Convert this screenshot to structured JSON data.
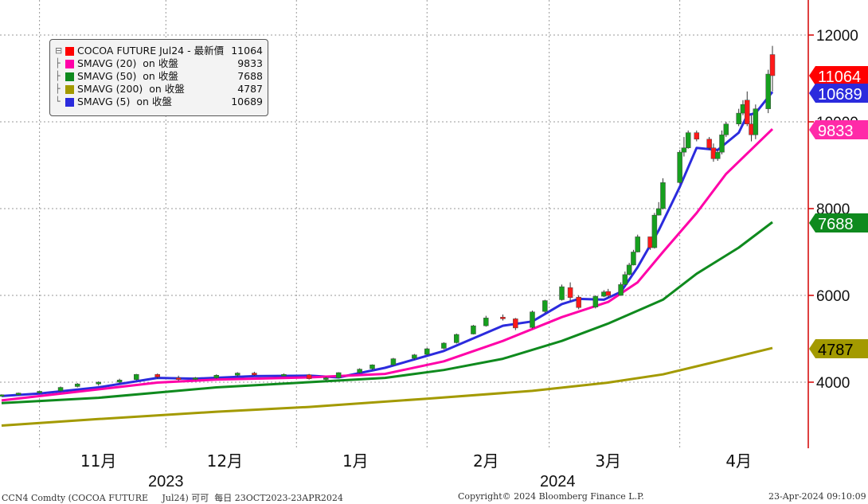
{
  "chart_data": {
    "type": "candlestick",
    "title": "",
    "y_axis": {
      "ticks": [
        4000,
        6000,
        8000,
        10000,
        12000
      ],
      "position": "right",
      "color": "#d40000"
    },
    "x_axis": {
      "month_labels": [
        "11月",
        "12月",
        "1月",
        "2月",
        "3月",
        "4月"
      ],
      "year_labels": [
        "2023",
        "2024"
      ]
    },
    "grid": true,
    "legend": {
      "placement": "top-left",
      "entries": [
        {
          "label": "COCOA FUTURE Jul24 - 最新價",
          "value": "11064",
          "color": "#ff0000"
        },
        {
          "label": "SMAVG (20)  on 收盤",
          "value": "9833",
          "color": "#ff00a8"
        },
        {
          "label": "SMAVG (50)  on 收盤",
          "value": "7688",
          "color": "#0f8a1e"
        },
        {
          "label": "SMAVG (200)  on 收盤",
          "value": "4787",
          "color": "#a39a00"
        },
        {
          "label": "SMAVG (5)  on 收盤",
          "value": "10689",
          "color": "#2b2bdd"
        }
      ]
    },
    "value_tags": [
      {
        "value": "11064",
        "y": 11064,
        "bg": "#ff0000",
        "fg": "#ffffff"
      },
      {
        "value": "10689",
        "y": 10689,
        "bg": "#2b2bdd",
        "fg": "#ffffff"
      },
      {
        "value": "9833",
        "y": 9833,
        "bg": "#ff2aa8",
        "fg": "#ffffff"
      },
      {
        "value": "7688",
        "y": 7688,
        "bg": "#0f8a1e",
        "fg": "#ffffff"
      },
      {
        "value": "4787",
        "y": 4787,
        "bg": "#a39a00",
        "fg": "#000000"
      }
    ],
    "candles": [
      [
        "2023-10-23",
        3700,
        3720,
        3680,
        3710
      ],
      [
        "2023-10-27",
        3710,
        3760,
        3700,
        3750
      ],
      [
        "2023-11-01",
        3760,
        3800,
        3740,
        3790
      ],
      [
        "2023-11-06",
        3800,
        3900,
        3790,
        3880
      ],
      [
        "2023-11-10",
        3900,
        3980,
        3880,
        3960
      ],
      [
        "2023-11-15",
        3960,
        4020,
        3920,
        4000
      ],
      [
        "2023-11-20",
        4000,
        4080,
        3970,
        4050
      ],
      [
        "2023-11-24",
        4060,
        4190,
        4040,
        4180
      ],
      [
        "2023-11-29",
        4180,
        4200,
        4080,
        4120
      ],
      [
        "2023-12-04",
        4100,
        4150,
        4030,
        4060
      ],
      [
        "2023-12-08",
        4070,
        4120,
        4050,
        4100
      ],
      [
        "2023-12-13",
        4100,
        4180,
        4080,
        4160
      ],
      [
        "2023-12-18",
        4160,
        4230,
        4130,
        4210
      ],
      [
        "2023-12-22",
        4210,
        4240,
        4150,
        4170
      ],
      [
        "2023-12-29",
        4170,
        4200,
        4140,
        4180
      ],
      [
        "2024-01-04",
        4170,
        4190,
        4060,
        4080
      ],
      [
        "2024-01-08",
        4090,
        4120,
        4030,
        4100
      ],
      [
        "2024-01-11",
        4100,
        4230,
        4090,
        4220
      ],
      [
        "2024-01-16",
        4220,
        4320,
        4200,
        4300
      ],
      [
        "2024-01-19",
        4310,
        4410,
        4290,
        4400
      ],
      [
        "2024-01-24",
        4400,
        4560,
        4380,
        4540
      ],
      [
        "2024-01-29",
        4550,
        4650,
        4520,
        4630
      ],
      [
        "2024-02-01",
        4640,
        4790,
        4620,
        4770
      ],
      [
        "2024-02-05",
        4780,
        4920,
        4760,
        4900
      ],
      [
        "2024-02-08",
        4910,
        5120,
        4890,
        5100
      ],
      [
        "2024-02-12",
        5110,
        5320,
        5100,
        5300
      ],
      [
        "2024-02-15",
        5300,
        5530,
        5280,
        5480
      ],
      [
        "2024-02-19",
        5500,
        5560,
        5420,
        5460
      ],
      [
        "2024-02-22",
        5460,
        5480,
        5200,
        5250
      ],
      [
        "2024-02-26",
        5260,
        5650,
        5240,
        5620
      ],
      [
        "2024-02-29",
        5630,
        5900,
        5600,
        5880
      ],
      [
        "2024-03-04",
        5900,
        6250,
        5880,
        6200
      ],
      [
        "2024-03-06",
        6180,
        6300,
        5880,
        5950
      ],
      [
        "2024-03-08",
        5960,
        6000,
        5680,
        5720
      ],
      [
        "2024-03-12",
        5730,
        6000,
        5700,
        5980
      ],
      [
        "2024-03-14",
        5980,
        6120,
        5960,
        6080
      ],
      [
        "2024-03-15",
        6090,
        6150,
        5950,
        6000
      ],
      [
        "2024-03-18",
        6000,
        6300,
        5990,
        6250
      ],
      [
        "2024-03-19",
        6250,
        6550,
        6240,
        6480
      ],
      [
        "2024-03-20",
        6480,
        6750,
        6460,
        6700
      ],
      [
        "2024-03-21",
        6700,
        7050,
        6690,
        7000
      ],
      [
        "2024-03-22",
        7000,
        7400,
        6990,
        7350
      ],
      [
        "2024-03-25",
        7350,
        7350,
        7050,
        7100
      ],
      [
        "2024-03-26",
        7100,
        7900,
        7080,
        7850
      ],
      [
        "2024-03-27",
        7850,
        8150,
        7840,
        8000
      ],
      [
        "2024-03-28",
        8000,
        8700,
        7980,
        8600
      ],
      [
        "2024-04-01",
        8600,
        9350,
        8580,
        9300
      ],
      [
        "2024-04-02",
        9300,
        9650,
        9200,
        9400
      ],
      [
        "2024-04-03",
        9400,
        9800,
        9380,
        9750
      ],
      [
        "2024-04-05",
        9750,
        9800,
        9550,
        9600
      ],
      [
        "2024-04-08",
        9600,
        9650,
        9350,
        9400
      ],
      [
        "2024-04-09",
        9400,
        9500,
        9080,
        9150
      ],
      [
        "2024-04-10",
        9150,
        9350,
        9100,
        9300
      ],
      [
        "2024-04-11",
        9300,
        9800,
        9250,
        9700
      ],
      [
        "2024-04-12",
        9700,
        10000,
        9650,
        9950
      ],
      [
        "2024-04-15",
        9950,
        10300,
        9900,
        10200
      ],
      [
        "2024-04-16",
        10200,
        10500,
        10150,
        10400
      ],
      [
        "2024-04-17",
        10500,
        10700,
        9900,
        9950
      ],
      [
        "2024-04-18",
        9950,
        10150,
        9550,
        9700
      ],
      [
        "2024-04-19",
        9700,
        10400,
        9600,
        10300
      ],
      [
        "2024-04-22",
        10300,
        11200,
        10200,
        11100
      ],
      [
        "2024-04-23",
        11550,
        11750,
        10700,
        11064
      ]
    ],
    "series": [
      {
        "name": "SMAVG (5)  on 收盤",
        "color": "#2b2bdd",
        "points": [
          [
            "2023-10-23",
            3680
          ],
          [
            "2023-11-01",
            3740
          ],
          [
            "2023-11-15",
            3880
          ],
          [
            "2023-11-29",
            4100
          ],
          [
            "2023-12-08",
            4080
          ],
          [
            "2023-12-22",
            4140
          ],
          [
            "2024-01-04",
            4150
          ],
          [
            "2024-01-11",
            4110
          ],
          [
            "2024-01-22",
            4330
          ],
          [
            "2024-02-05",
            4720
          ],
          [
            "2024-02-19",
            5300
          ],
          [
            "2024-02-26",
            5400
          ],
          [
            "2024-03-04",
            5800
          ],
          [
            "2024-03-08",
            5920
          ],
          [
            "2024-03-14",
            5900
          ],
          [
            "2024-03-18",
            6080
          ],
          [
            "2024-03-22",
            6650
          ],
          [
            "2024-03-27",
            7500
          ],
          [
            "2024-04-01",
            8500
          ],
          [
            "2024-04-05",
            9400
          ],
          [
            "2024-04-10",
            9350
          ],
          [
            "2024-04-15",
            9750
          ],
          [
            "2024-04-17",
            10150
          ],
          [
            "2024-04-19",
            10200
          ],
          [
            "2024-04-23",
            10689
          ]
        ]
      },
      {
        "name": "SMAVG (20)  on 收盤",
        "color": "#ff00a8",
        "points": [
          [
            "2023-10-23",
            3580
          ],
          [
            "2023-11-10",
            3780
          ],
          [
            "2023-11-29",
            3990
          ],
          [
            "2023-12-13",
            4060
          ],
          [
            "2024-01-04",
            4110
          ],
          [
            "2024-01-22",
            4190
          ],
          [
            "2024-02-05",
            4480
          ],
          [
            "2024-02-19",
            4950
          ],
          [
            "2024-03-04",
            5500
          ],
          [
            "2024-03-15",
            5850
          ],
          [
            "2024-03-22",
            6300
          ],
          [
            "2024-03-28",
            7000
          ],
          [
            "2024-04-05",
            7900
          ],
          [
            "2024-04-12",
            8800
          ],
          [
            "2024-04-23",
            9833
          ]
        ]
      },
      {
        "name": "SMAVG (50)  on 收盤",
        "color": "#0f8a1e",
        "points": [
          [
            "2023-10-23",
            3520
          ],
          [
            "2023-11-15",
            3640
          ],
          [
            "2023-12-13",
            3880
          ],
          [
            "2024-01-04",
            4000
          ],
          [
            "2024-01-22",
            4100
          ],
          [
            "2024-02-05",
            4280
          ],
          [
            "2024-02-19",
            4540
          ],
          [
            "2024-03-04",
            4950
          ],
          [
            "2024-03-15",
            5350
          ],
          [
            "2024-03-28",
            5900
          ],
          [
            "2024-04-05",
            6500
          ],
          [
            "2024-04-15",
            7100
          ],
          [
            "2024-04-23",
            7688
          ]
        ]
      },
      {
        "name": "SMAVG (200)  on 收盤",
        "color": "#a39a00",
        "points": [
          [
            "2023-10-23",
            3000
          ],
          [
            "2023-11-15",
            3150
          ],
          [
            "2023-12-13",
            3320
          ],
          [
            "2024-01-04",
            3430
          ],
          [
            "2024-02-01",
            3620
          ],
          [
            "2024-02-26",
            3800
          ],
          [
            "2024-03-15",
            3990
          ],
          [
            "2024-03-28",
            4180
          ],
          [
            "2024-04-10",
            4480
          ],
          [
            "2024-04-23",
            4787
          ]
        ]
      }
    ]
  },
  "footer": {
    "left": "CCN4 Comdty (COCOA FUTURE     Jul24) 可可  每日 23OCT2023-23APR2024",
    "center": "Copyright© 2024 Bloomberg Finance L.P.",
    "right": "23-Apr-2024 09:10:09"
  }
}
